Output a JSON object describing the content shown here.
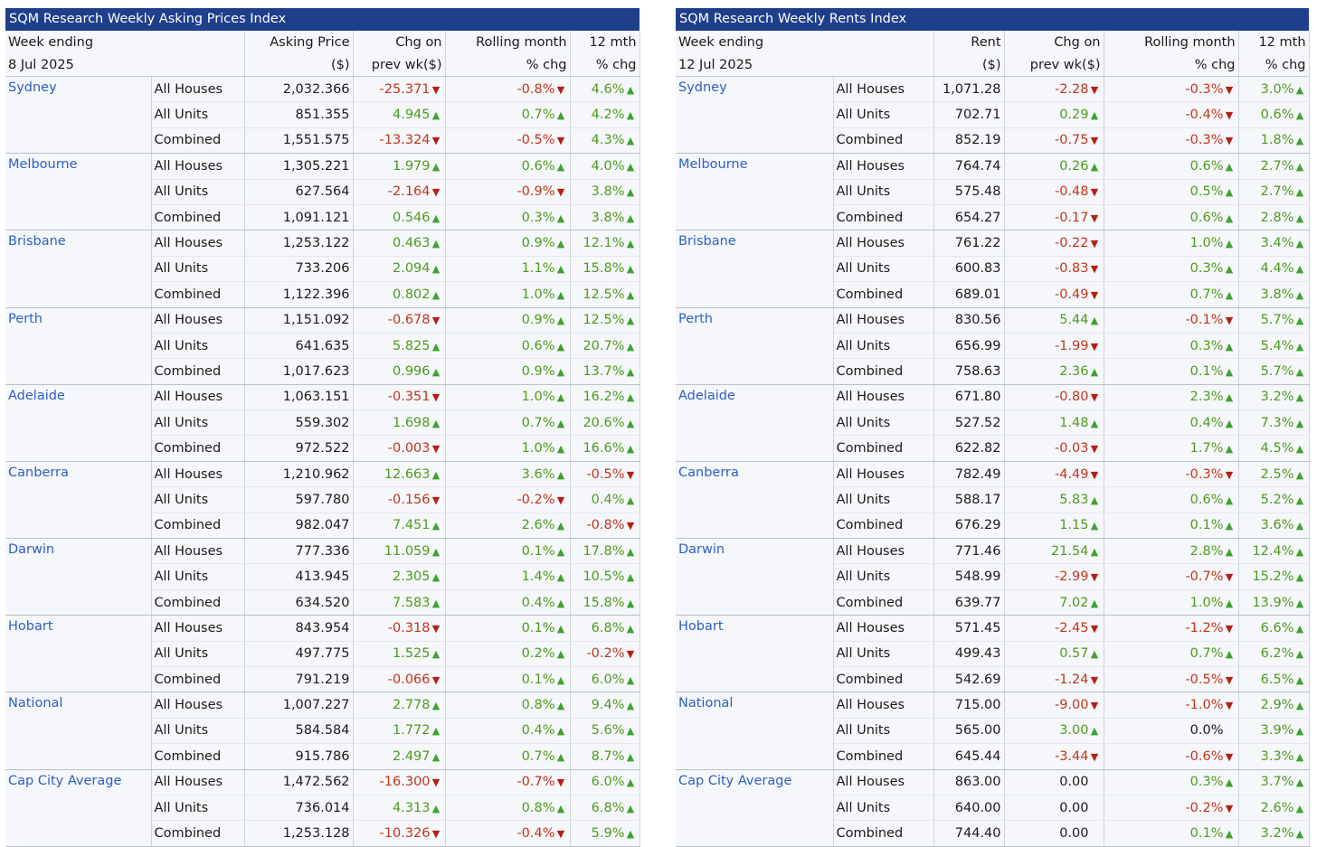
{
  "asking": {
    "title": "SQM Research Weekly Asking Prices Index",
    "header": {
      "week_label": "Week ending",
      "week_date": "8 Jul 2025",
      "value_l1": "Asking Price",
      "value_l2": "($)",
      "chg_l1": "Chg on",
      "chg_l2": "prev wk($)",
      "roll_l1": "Rolling month",
      "roll_l2": "% chg",
      "yr_l1": "12 mth",
      "yr_l2": "% chg"
    },
    "cities": [
      {
        "name": "Sydney",
        "rows": [
          {
            "type": "All Houses",
            "value": "2,032.366",
            "chg": "-25.371",
            "chg_dir": "down",
            "roll": "-0.8%",
            "roll_dir": "down",
            "yr": "4.6%",
            "yr_dir": "up"
          },
          {
            "type": "All Units",
            "value": "851.355",
            "chg": "4.945",
            "chg_dir": "up",
            "roll": "0.7%",
            "roll_dir": "up",
            "yr": "4.2%",
            "yr_dir": "up"
          },
          {
            "type": "Combined",
            "value": "1,551.575",
            "chg": "-13.324",
            "chg_dir": "down",
            "roll": "-0.5%",
            "roll_dir": "down",
            "yr": "4.3%",
            "yr_dir": "up"
          }
        ]
      },
      {
        "name": "Melbourne",
        "rows": [
          {
            "type": "All Houses",
            "value": "1,305.221",
            "chg": "1.979",
            "chg_dir": "up",
            "roll": "0.6%",
            "roll_dir": "up",
            "yr": "4.0%",
            "yr_dir": "up"
          },
          {
            "type": "All Units",
            "value": "627.564",
            "chg": "-2.164",
            "chg_dir": "down",
            "roll": "-0.9%",
            "roll_dir": "down",
            "yr": "3.8%",
            "yr_dir": "up"
          },
          {
            "type": "Combined",
            "value": "1,091.121",
            "chg": "0.546",
            "chg_dir": "up",
            "roll": "0.3%",
            "roll_dir": "up",
            "yr": "3.8%",
            "yr_dir": "up"
          }
        ]
      },
      {
        "name": "Brisbane",
        "rows": [
          {
            "type": "All Houses",
            "value": "1,253.122",
            "chg": "0.463",
            "chg_dir": "up",
            "roll": "0.9%",
            "roll_dir": "up",
            "yr": "12.1%",
            "yr_dir": "up"
          },
          {
            "type": "All Units",
            "value": "733.206",
            "chg": "2.094",
            "chg_dir": "up",
            "roll": "1.1%",
            "roll_dir": "up",
            "yr": "15.8%",
            "yr_dir": "up"
          },
          {
            "type": "Combined",
            "value": "1,122.396",
            "chg": "0.802",
            "chg_dir": "up",
            "roll": "1.0%",
            "roll_dir": "up",
            "yr": "12.5%",
            "yr_dir": "up"
          }
        ]
      },
      {
        "name": "Perth",
        "rows": [
          {
            "type": "All Houses",
            "value": "1,151.092",
            "chg": "-0.678",
            "chg_dir": "down",
            "roll": "0.9%",
            "roll_dir": "up",
            "yr": "12.5%",
            "yr_dir": "up"
          },
          {
            "type": "All Units",
            "value": "641.635",
            "chg": "5.825",
            "chg_dir": "up",
            "roll": "0.6%",
            "roll_dir": "up",
            "yr": "20.7%",
            "yr_dir": "up"
          },
          {
            "type": "Combined",
            "value": "1,017.623",
            "chg": "0.996",
            "chg_dir": "up",
            "roll": "0.9%",
            "roll_dir": "up",
            "yr": "13.7%",
            "yr_dir": "up"
          }
        ]
      },
      {
        "name": "Adelaide",
        "rows": [
          {
            "type": "All Houses",
            "value": "1,063.151",
            "chg": "-0.351",
            "chg_dir": "down",
            "roll": "1.0%",
            "roll_dir": "up",
            "yr": "16.2%",
            "yr_dir": "up"
          },
          {
            "type": "All Units",
            "value": "559.302",
            "chg": "1.698",
            "chg_dir": "up",
            "roll": "0.7%",
            "roll_dir": "up",
            "yr": "20.6%",
            "yr_dir": "up"
          },
          {
            "type": "Combined",
            "value": "972.522",
            "chg": "-0.003",
            "chg_dir": "down",
            "roll": "1.0%",
            "roll_dir": "up",
            "yr": "16.6%",
            "yr_dir": "up"
          }
        ]
      },
      {
        "name": "Canberra",
        "rows": [
          {
            "type": "All Houses",
            "value": "1,210.962",
            "chg": "12.663",
            "chg_dir": "up",
            "roll": "3.6%",
            "roll_dir": "up",
            "yr": "-0.5%",
            "yr_dir": "down"
          },
          {
            "type": "All Units",
            "value": "597.780",
            "chg": "-0.156",
            "chg_dir": "down",
            "roll": "-0.2%",
            "roll_dir": "down",
            "yr": "0.4%",
            "yr_dir": "up"
          },
          {
            "type": "Combined",
            "value": "982.047",
            "chg": "7.451",
            "chg_dir": "up",
            "roll": "2.6%",
            "roll_dir": "up",
            "yr": "-0.8%",
            "yr_dir": "down"
          }
        ]
      },
      {
        "name": "Darwin",
        "rows": [
          {
            "type": "All Houses",
            "value": "777.336",
            "chg": "11.059",
            "chg_dir": "up",
            "roll": "0.1%",
            "roll_dir": "up",
            "yr": "17.8%",
            "yr_dir": "up"
          },
          {
            "type": "All Units",
            "value": "413.945",
            "chg": "2.305",
            "chg_dir": "up",
            "roll": "1.4%",
            "roll_dir": "up",
            "yr": "10.5%",
            "yr_dir": "up"
          },
          {
            "type": "Combined",
            "value": "634.520",
            "chg": "7.583",
            "chg_dir": "up",
            "roll": "0.4%",
            "roll_dir": "up",
            "yr": "15.8%",
            "yr_dir": "up"
          }
        ]
      },
      {
        "name": "Hobart",
        "rows": [
          {
            "type": "All Houses",
            "value": "843.954",
            "chg": "-0.318",
            "chg_dir": "down",
            "roll": "0.1%",
            "roll_dir": "up",
            "yr": "6.8%",
            "yr_dir": "up"
          },
          {
            "type": "All Units",
            "value": "497.775",
            "chg": "1.525",
            "chg_dir": "up",
            "roll": "0.2%",
            "roll_dir": "up",
            "yr": "-0.2%",
            "yr_dir": "down"
          },
          {
            "type": "Combined",
            "value": "791.219",
            "chg": "-0.066",
            "chg_dir": "down",
            "roll": "0.1%",
            "roll_dir": "up",
            "yr": "6.0%",
            "yr_dir": "up"
          }
        ]
      },
      {
        "name": "National",
        "rows": [
          {
            "type": "All Houses",
            "value": "1,007.227",
            "chg": "2.778",
            "chg_dir": "up",
            "roll": "0.8%",
            "roll_dir": "up",
            "yr": "9.4%",
            "yr_dir": "up"
          },
          {
            "type": "All Units",
            "value": "584.584",
            "chg": "1.772",
            "chg_dir": "up",
            "roll": "0.4%",
            "roll_dir": "up",
            "yr": "5.6%",
            "yr_dir": "up"
          },
          {
            "type": "Combined",
            "value": "915.786",
            "chg": "2.497",
            "chg_dir": "up",
            "roll": "0.7%",
            "roll_dir": "up",
            "yr": "8.7%",
            "yr_dir": "up"
          }
        ]
      },
      {
        "name": "Cap City Average",
        "rows": [
          {
            "type": "All Houses",
            "value": "1,472.562",
            "chg": "-16.300",
            "chg_dir": "down",
            "roll": "-0.7%",
            "roll_dir": "down",
            "yr": "6.0%",
            "yr_dir": "up"
          },
          {
            "type": "All Units",
            "value": "736.014",
            "chg": "4.313",
            "chg_dir": "up",
            "roll": "0.8%",
            "roll_dir": "up",
            "yr": "6.8%",
            "yr_dir": "up"
          },
          {
            "type": "Combined",
            "value": "1,253.128",
            "chg": "-10.326",
            "chg_dir": "down",
            "roll": "-0.4%",
            "roll_dir": "down",
            "yr": "5.9%",
            "yr_dir": "up"
          }
        ]
      }
    ]
  },
  "rents": {
    "title": "SQM Research Weekly Rents Index",
    "header": {
      "week_label": "Week ending",
      "week_date": "12 Jul 2025",
      "value_l1": "Rent",
      "value_l2": "($)",
      "chg_l1": "Chg on",
      "chg_l2": "prev wk($)",
      "roll_l1": "Rolling month",
      "roll_l2": "% chg",
      "yr_l1": "12 mth",
      "yr_l2": "% chg"
    },
    "cities": [
      {
        "name": "Sydney",
        "rows": [
          {
            "type": "All Houses",
            "value": "1,071.28",
            "chg": "-2.28",
            "chg_dir": "down",
            "roll": "-0.3%",
            "roll_dir": "down",
            "yr": "3.0%",
            "yr_dir": "up"
          },
          {
            "type": "All Units",
            "value": "702.71",
            "chg": "0.29",
            "chg_dir": "up",
            "roll": "-0.4%",
            "roll_dir": "down",
            "yr": "0.6%",
            "yr_dir": "up"
          },
          {
            "type": "Combined",
            "value": "852.19",
            "chg": "-0.75",
            "chg_dir": "down",
            "roll": "-0.3%",
            "roll_dir": "down",
            "yr": "1.8%",
            "yr_dir": "up"
          }
        ]
      },
      {
        "name": "Melbourne",
        "rows": [
          {
            "type": "All Houses",
            "value": "764.74",
            "chg": "0.26",
            "chg_dir": "up",
            "roll": "0.6%",
            "roll_dir": "up",
            "yr": "2.7%",
            "yr_dir": "up"
          },
          {
            "type": "All Units",
            "value": "575.48",
            "chg": "-0.48",
            "chg_dir": "down",
            "roll": "0.5%",
            "roll_dir": "up",
            "yr": "2.7%",
            "yr_dir": "up"
          },
          {
            "type": "Combined",
            "value": "654.27",
            "chg": "-0.17",
            "chg_dir": "down",
            "roll": "0.6%",
            "roll_dir": "up",
            "yr": "2.8%",
            "yr_dir": "up"
          }
        ]
      },
      {
        "name": "Brisbane",
        "rows": [
          {
            "type": "All Houses",
            "value": "761.22",
            "chg": "-0.22",
            "chg_dir": "down",
            "roll": "1.0%",
            "roll_dir": "up",
            "yr": "3.4%",
            "yr_dir": "up"
          },
          {
            "type": "All Units",
            "value": "600.83",
            "chg": "-0.83",
            "chg_dir": "down",
            "roll": "0.3%",
            "roll_dir": "up",
            "yr": "4.4%",
            "yr_dir": "up"
          },
          {
            "type": "Combined",
            "value": "689.01",
            "chg": "-0.49",
            "chg_dir": "down",
            "roll": "0.7%",
            "roll_dir": "up",
            "yr": "3.8%",
            "yr_dir": "up"
          }
        ]
      },
      {
        "name": "Perth",
        "rows": [
          {
            "type": "All Houses",
            "value": "830.56",
            "chg": "5.44",
            "chg_dir": "up",
            "roll": "-0.1%",
            "roll_dir": "down",
            "yr": "5.7%",
            "yr_dir": "up"
          },
          {
            "type": "All Units",
            "value": "656.99",
            "chg": "-1.99",
            "chg_dir": "down",
            "roll": "0.3%",
            "roll_dir": "up",
            "yr": "5.4%",
            "yr_dir": "up"
          },
          {
            "type": "Combined",
            "value": "758.63",
            "chg": "2.36",
            "chg_dir": "up",
            "roll": "0.1%",
            "roll_dir": "up",
            "yr": "5.7%",
            "yr_dir": "up"
          }
        ]
      },
      {
        "name": "Adelaide",
        "rows": [
          {
            "type": "All Houses",
            "value": "671.80",
            "chg": "-0.80",
            "chg_dir": "down",
            "roll": "2.3%",
            "roll_dir": "up",
            "yr": "3.2%",
            "yr_dir": "up"
          },
          {
            "type": "All Units",
            "value": "527.52",
            "chg": "1.48",
            "chg_dir": "up",
            "roll": "0.4%",
            "roll_dir": "up",
            "yr": "7.3%",
            "yr_dir": "up"
          },
          {
            "type": "Combined",
            "value": "622.82",
            "chg": "-0.03",
            "chg_dir": "down",
            "roll": "1.7%",
            "roll_dir": "up",
            "yr": "4.5%",
            "yr_dir": "up"
          }
        ]
      },
      {
        "name": "Canberra",
        "rows": [
          {
            "type": "All Houses",
            "value": "782.49",
            "chg": "-4.49",
            "chg_dir": "down",
            "roll": "-0.3%",
            "roll_dir": "down",
            "yr": "2.5%",
            "yr_dir": "up"
          },
          {
            "type": "All Units",
            "value": "588.17",
            "chg": "5.83",
            "chg_dir": "up",
            "roll": "0.6%",
            "roll_dir": "up",
            "yr": "5.2%",
            "yr_dir": "up"
          },
          {
            "type": "Combined",
            "value": "676.29",
            "chg": "1.15",
            "chg_dir": "up",
            "roll": "0.1%",
            "roll_dir": "up",
            "yr": "3.6%",
            "yr_dir": "up"
          }
        ]
      },
      {
        "name": "Darwin",
        "rows": [
          {
            "type": "All Houses",
            "value": "771.46",
            "chg": "21.54",
            "chg_dir": "up",
            "roll": "2.8%",
            "roll_dir": "up",
            "yr": "12.4%",
            "yr_dir": "up"
          },
          {
            "type": "All Units",
            "value": "548.99",
            "chg": "-2.99",
            "chg_dir": "down",
            "roll": "-0.7%",
            "roll_dir": "down",
            "yr": "15.2%",
            "yr_dir": "up"
          },
          {
            "type": "Combined",
            "value": "639.77",
            "chg": "7.02",
            "chg_dir": "up",
            "roll": "1.0%",
            "roll_dir": "up",
            "yr": "13.9%",
            "yr_dir": "up"
          }
        ]
      },
      {
        "name": "Hobart",
        "rows": [
          {
            "type": "All Houses",
            "value": "571.45",
            "chg": "-2.45",
            "chg_dir": "down",
            "roll": "-1.2%",
            "roll_dir": "down",
            "yr": "6.6%",
            "yr_dir": "up"
          },
          {
            "type": "All Units",
            "value": "499.43",
            "chg": "0.57",
            "chg_dir": "up",
            "roll": "0.7%",
            "roll_dir": "up",
            "yr": "6.2%",
            "yr_dir": "up"
          },
          {
            "type": "Combined",
            "value": "542.69",
            "chg": "-1.24",
            "chg_dir": "down",
            "roll": "-0.5%",
            "roll_dir": "down",
            "yr": "6.5%",
            "yr_dir": "up"
          }
        ]
      },
      {
        "name": "National",
        "rows": [
          {
            "type": "All Houses",
            "value": "715.00",
            "chg": "-9.00",
            "chg_dir": "down",
            "roll": "-1.0%",
            "roll_dir": "down",
            "yr": "2.9%",
            "yr_dir": "up"
          },
          {
            "type": "All Units",
            "value": "565.00",
            "chg": "3.00",
            "chg_dir": "up",
            "roll": "0.0%",
            "roll_dir": "flat",
            "yr": "3.9%",
            "yr_dir": "up"
          },
          {
            "type": "Combined",
            "value": "645.44",
            "chg": "-3.44",
            "chg_dir": "down",
            "roll": "-0.6%",
            "roll_dir": "down",
            "yr": "3.3%",
            "yr_dir": "up"
          }
        ]
      },
      {
        "name": "Cap City Average",
        "rows": [
          {
            "type": "All Houses",
            "value": "863.00",
            "chg": "0.00",
            "chg_dir": "flat",
            "roll": "0.3%",
            "roll_dir": "up",
            "yr": "3.7%",
            "yr_dir": "up"
          },
          {
            "type": "All Units",
            "value": "640.00",
            "chg": "0.00",
            "chg_dir": "flat",
            "roll": "-0.2%",
            "roll_dir": "down",
            "yr": "2.6%",
            "yr_dir": "up"
          },
          {
            "type": "Combined",
            "value": "744.40",
            "chg": "0.00",
            "chg_dir": "flat",
            "roll": "0.1%",
            "roll_dir": "up",
            "yr": "3.2%",
            "yr_dir": "up"
          }
        ]
      }
    ]
  }
}
